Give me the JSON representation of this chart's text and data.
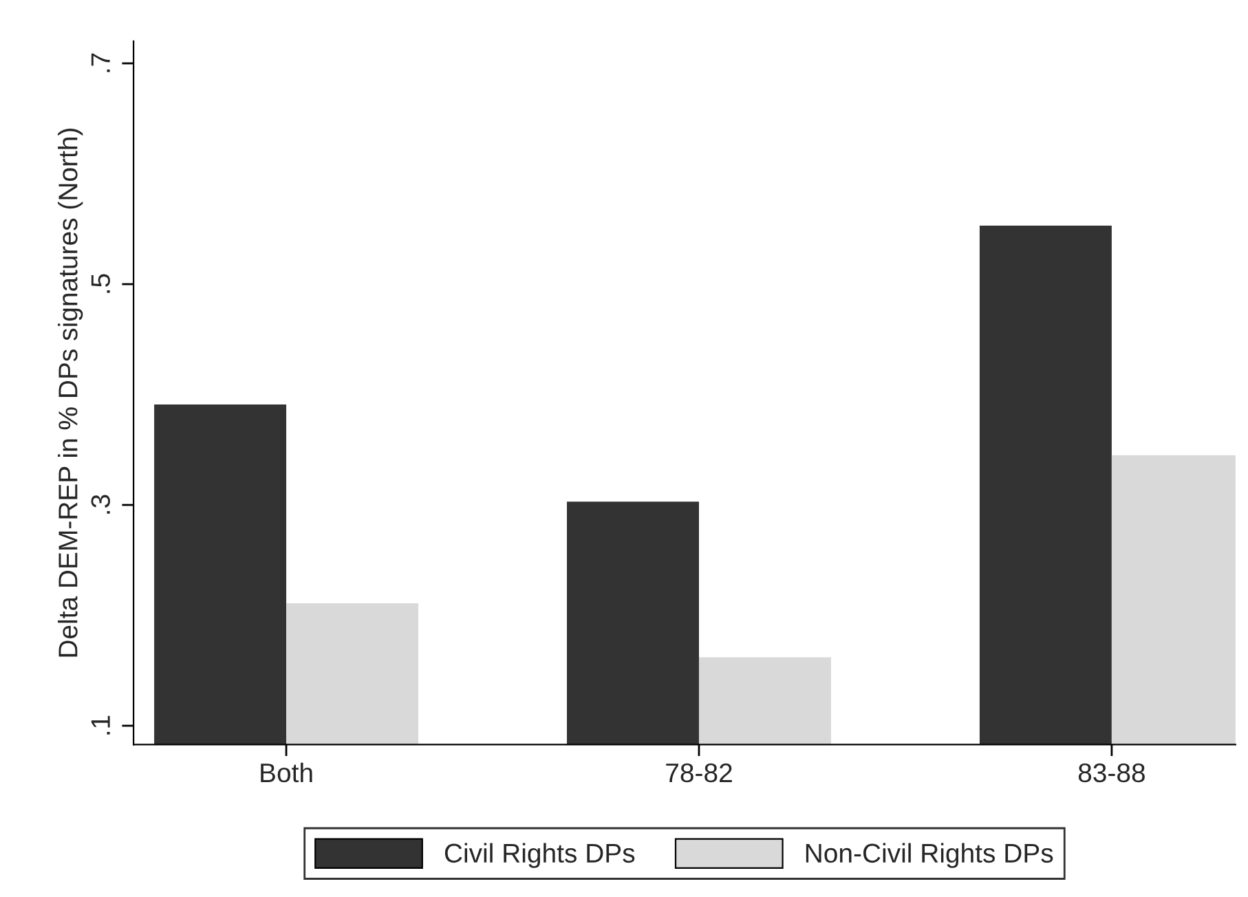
{
  "chart_data": {
    "type": "bar",
    "ylabel": "Delta DEM-REP in % DPs signatures (North)",
    "categories": [
      "Both",
      "78-82",
      "83-88"
    ],
    "series": [
      {
        "name": "Civil Rights DPs",
        "color": "#333333",
        "values": [
          0.391,
          0.303,
          0.553
        ]
      },
      {
        "name": "Non-Civil Rights DPs",
        "color": "#d9d9d9",
        "values": [
          0.211,
          0.162,
          0.345
        ]
      }
    ],
    "ylim": [
      0.083,
      0.72
    ],
    "yticks": [
      {
        "value": 0.1,
        "label": ".1"
      },
      {
        "value": 0.3,
        "label": ".3"
      },
      {
        "value": 0.5,
        "label": ".5"
      },
      {
        "value": 0.7,
        "label": ".7"
      }
    ],
    "grid": false,
    "legend": "bottom"
  }
}
